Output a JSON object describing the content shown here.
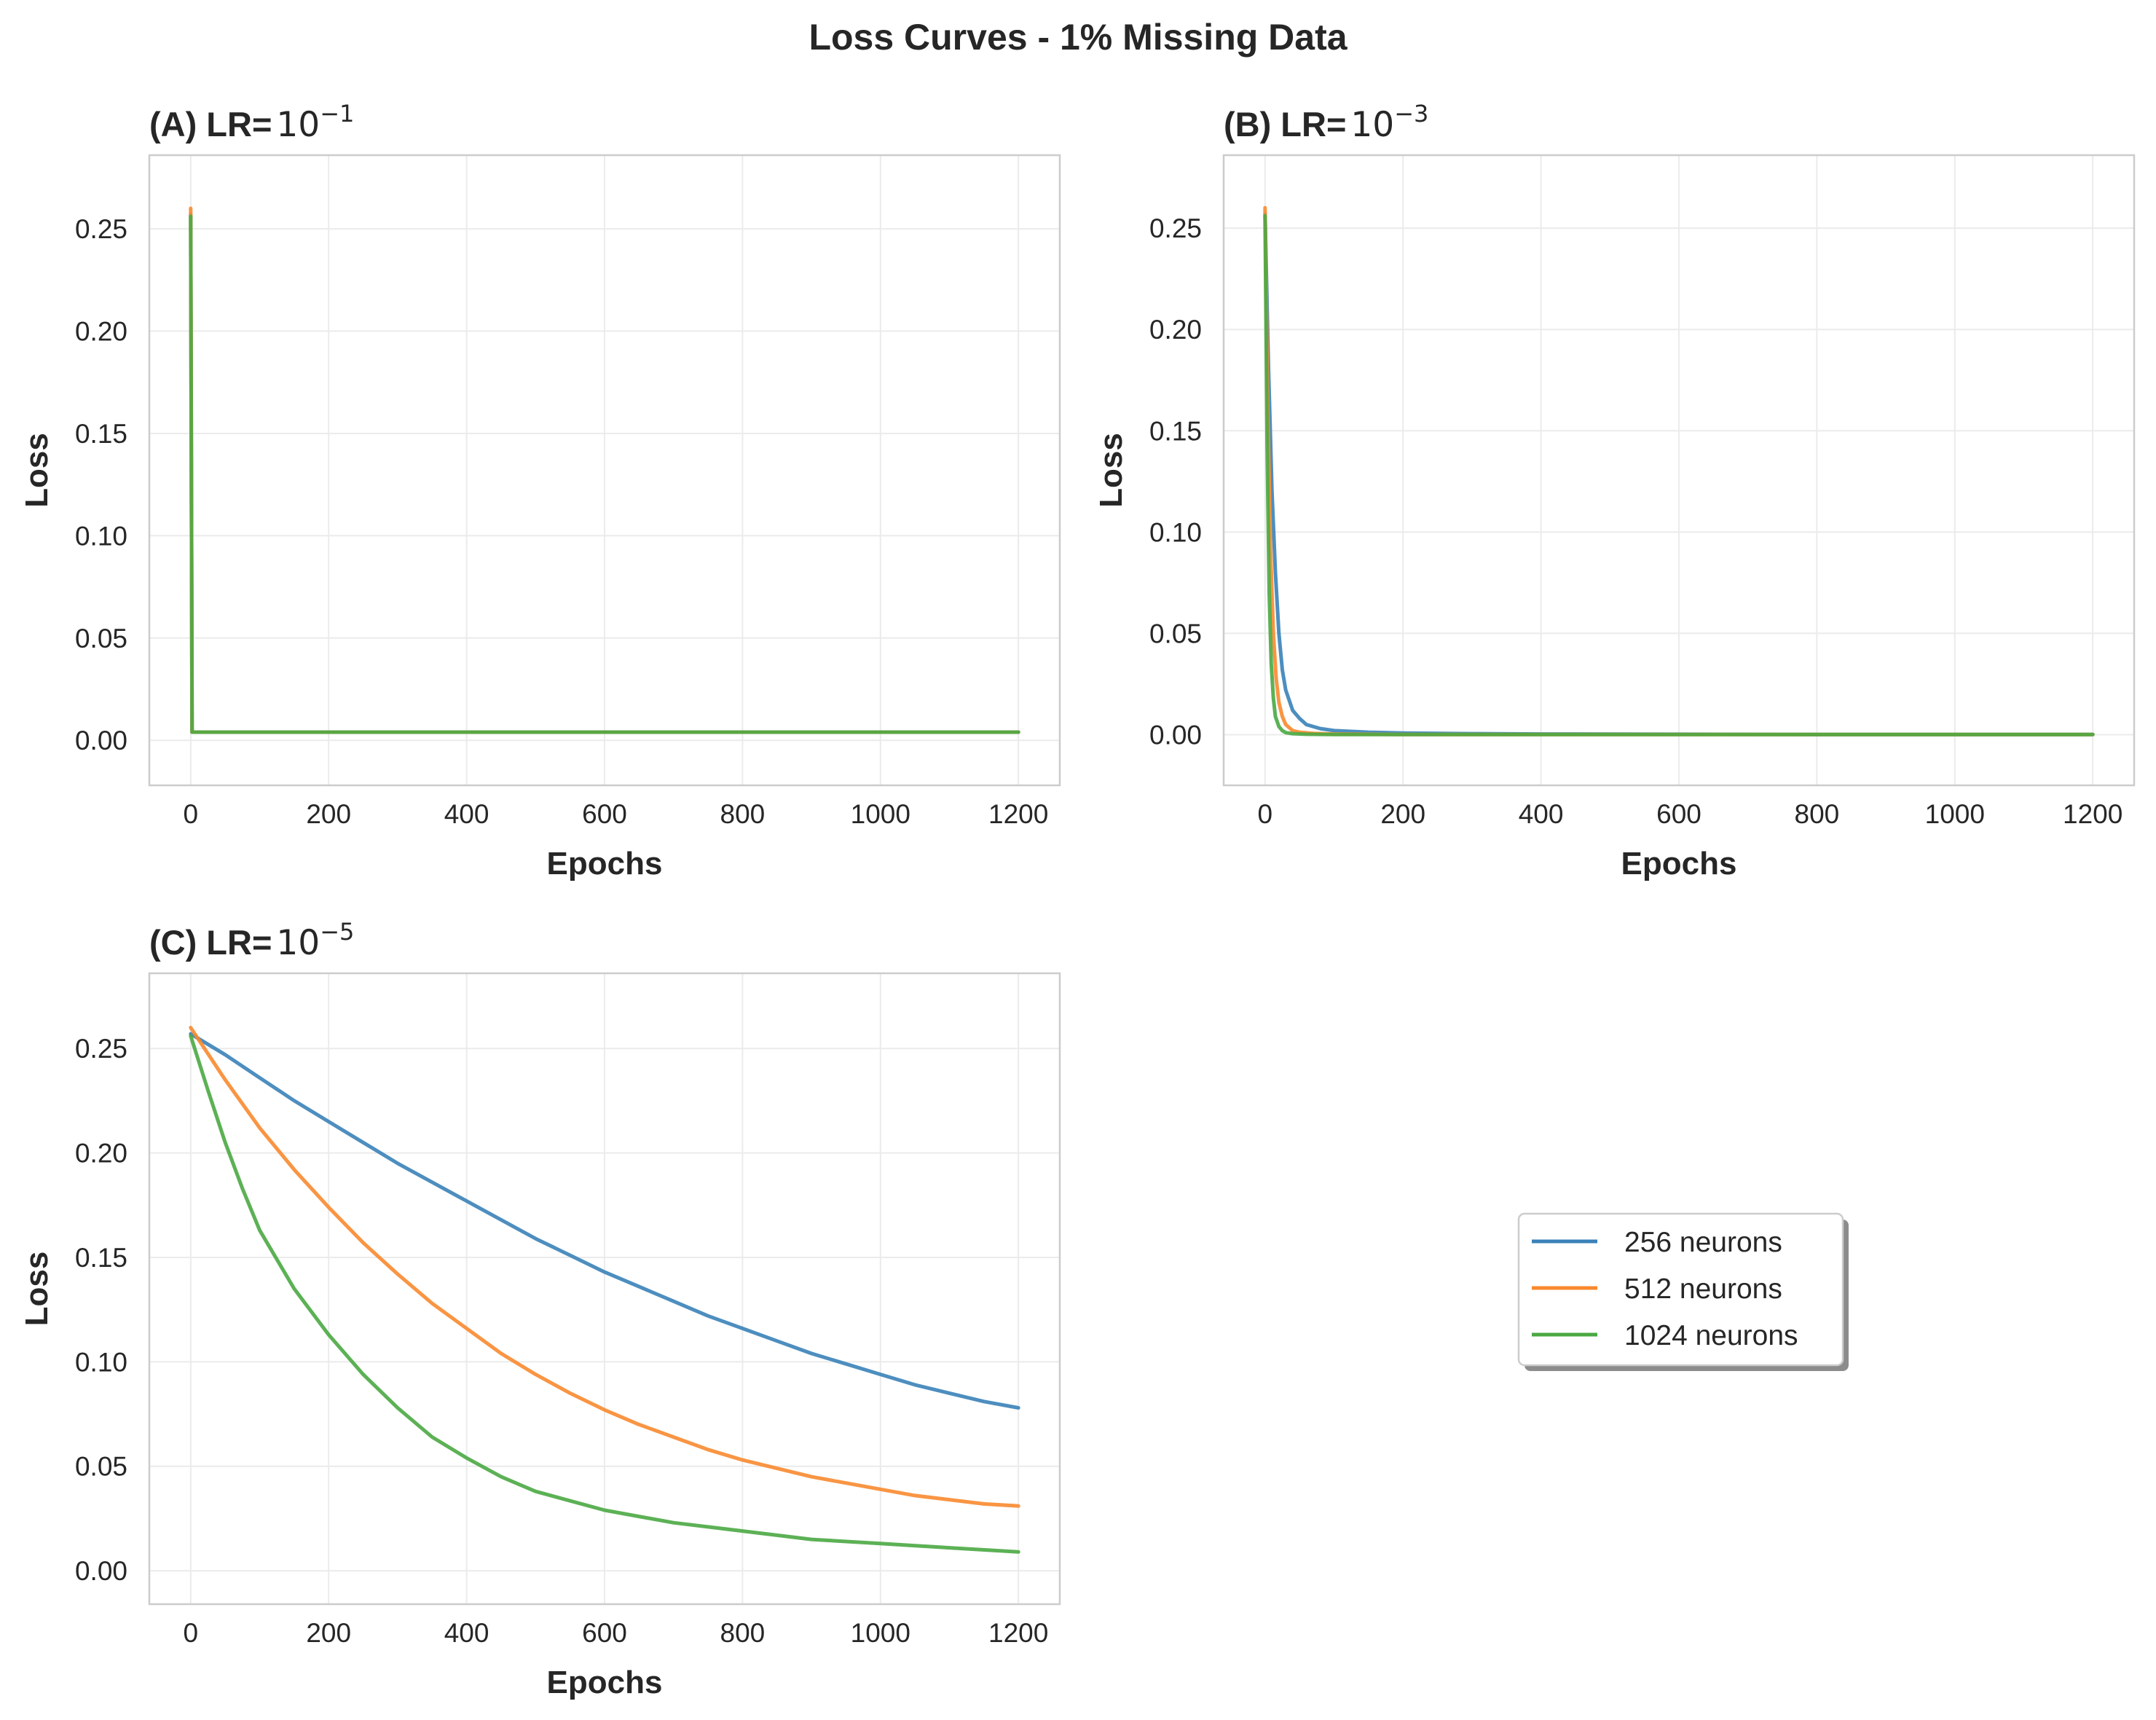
{
  "figure": {
    "suptitle": "Loss Curves - 1% Missing Data"
  },
  "chart_data": [
    {
      "type": "line",
      "panel": "A",
      "title": "(A) LR=",
      "title_math": {
        "base": "10",
        "exp": "−1"
      },
      "xlabel": "Epochs",
      "ylabel": "Loss",
      "xlim": [
        -60,
        1260
      ],
      "ylim": [
        -0.022,
        0.286
      ],
      "xticks": [
        0,
        200,
        400,
        600,
        800,
        1000,
        1200
      ],
      "yticks": [
        0.0,
        0.05,
        0.1,
        0.15,
        0.2,
        0.25
      ],
      "ytick_labels": [
        "0.00",
        "0.05",
        "0.10",
        "0.15",
        "0.20",
        "0.25"
      ],
      "grid": true,
      "series": [
        {
          "name": "256 neurons",
          "color": "#3a82b8",
          "x": [
            0,
            2,
            4,
            1200
          ],
          "y": [
            0.257,
            0.004,
            0.004,
            0.004
          ]
        },
        {
          "name": "512 neurons",
          "color": "#f8892f",
          "x": [
            0,
            2,
            4,
            1200
          ],
          "y": [
            0.26,
            0.004,
            0.004,
            0.004
          ]
        },
        {
          "name": "1024 neurons",
          "color": "#4aa842",
          "x": [
            0,
            2,
            4,
            1200
          ],
          "y": [
            0.256,
            0.004,
            0.004,
            0.004
          ]
        }
      ]
    },
    {
      "type": "line",
      "panel": "B",
      "title": "(B) LR=",
      "title_math": {
        "base": "10",
        "exp": "−3"
      },
      "xlabel": "Epochs",
      "ylabel": "Loss",
      "xlim": [
        -60,
        1260
      ],
      "ylim": [
        -0.025,
        0.286
      ],
      "xticks": [
        0,
        200,
        400,
        600,
        800,
        1000,
        1200
      ],
      "yticks": [
        0.0,
        0.05,
        0.1,
        0.15,
        0.2,
        0.25
      ],
      "ytick_labels": [
        "0.00",
        "0.05",
        "0.10",
        "0.15",
        "0.20",
        "0.25"
      ],
      "grid": true,
      "series": [
        {
          "name": "256 neurons",
          "color": "#3a82b8",
          "x": [
            0,
            5,
            10,
            15,
            20,
            25,
            30,
            40,
            50,
            60,
            80,
            100,
            150,
            200,
            300,
            400,
            600,
            800,
            1000,
            1200
          ],
          "y": [
            0.257,
            0.18,
            0.12,
            0.08,
            0.05,
            0.032,
            0.022,
            0.012,
            0.008,
            0.005,
            0.003,
            0.002,
            0.0012,
            0.0008,
            0.0005,
            0.0003,
            0.0002,
            0.0001,
            0.0001,
            0.0001
          ]
        },
        {
          "name": "512 neurons",
          "color": "#f8892f",
          "x": [
            0,
            4,
            8,
            12,
            16,
            20,
            25,
            30,
            40,
            50,
            70,
            100,
            150,
            200,
            400,
            1200
          ],
          "y": [
            0.26,
            0.16,
            0.09,
            0.05,
            0.028,
            0.016,
            0.009,
            0.005,
            0.002,
            0.0012,
            0.0006,
            0.0003,
            0.0002,
            0.0001,
            0.0001,
            0.0001
          ]
        },
        {
          "name": "1024 neurons",
          "color": "#4aa842",
          "x": [
            0,
            3,
            6,
            9,
            12,
            15,
            20,
            25,
            30,
            40,
            60,
            100,
            200,
            1200
          ],
          "y": [
            0.256,
            0.14,
            0.07,
            0.035,
            0.018,
            0.009,
            0.004,
            0.002,
            0.001,
            0.0005,
            0.0002,
            0.0001,
            0.0001,
            0.0001
          ]
        }
      ]
    },
    {
      "type": "line",
      "panel": "C",
      "title": "(C) LR=",
      "title_math": {
        "base": "10",
        "exp": "−5"
      },
      "xlabel": "Epochs",
      "ylabel": "Loss",
      "xlim": [
        -60,
        1260
      ],
      "ylim": [
        -0.016,
        0.286
      ],
      "xticks": [
        0,
        200,
        400,
        600,
        800,
        1000,
        1200
      ],
      "yticks": [
        0.0,
        0.05,
        0.1,
        0.15,
        0.2,
        0.25
      ],
      "ytick_labels": [
        "0.00",
        "0.05",
        "0.10",
        "0.15",
        "0.20",
        "0.25"
      ],
      "grid": true,
      "series": [
        {
          "name": "256 neurons",
          "color": "#3a82b8",
          "x": [
            0,
            50,
            100,
            150,
            200,
            250,
            300,
            350,
            400,
            450,
            500,
            550,
            600,
            650,
            700,
            750,
            800,
            850,
            900,
            950,
            1000,
            1050,
            1100,
            1150,
            1200
          ],
          "y": [
            0.257,
            0.247,
            0.236,
            0.225,
            0.215,
            0.205,
            0.195,
            0.186,
            0.177,
            0.168,
            0.159,
            0.151,
            0.143,
            0.136,
            0.129,
            0.122,
            0.116,
            0.11,
            0.104,
            0.099,
            0.094,
            0.089,
            0.085,
            0.081,
            0.078
          ]
        },
        {
          "name": "512 neurons",
          "color": "#f8892f",
          "x": [
            0,
            50,
            100,
            150,
            200,
            250,
            300,
            350,
            400,
            450,
            500,
            550,
            600,
            650,
            700,
            750,
            800,
            850,
            900,
            950,
            1000,
            1050,
            1100,
            1150,
            1200
          ],
          "y": [
            0.26,
            0.235,
            0.212,
            0.192,
            0.174,
            0.157,
            0.142,
            0.128,
            0.116,
            0.104,
            0.094,
            0.085,
            0.077,
            0.07,
            0.064,
            0.058,
            0.053,
            0.049,
            0.045,
            0.042,
            0.039,
            0.036,
            0.034,
            0.032,
            0.031
          ]
        },
        {
          "name": "1024 neurons",
          "color": "#4aa842",
          "x": [
            0,
            25,
            50,
            75,
            100,
            150,
            200,
            250,
            300,
            350,
            400,
            450,
            500,
            600,
            700,
            800,
            900,
            1000,
            1100,
            1200
          ],
          "y": [
            0.256,
            0.23,
            0.205,
            0.183,
            0.163,
            0.135,
            0.113,
            0.094,
            0.078,
            0.064,
            0.054,
            0.045,
            0.038,
            0.029,
            0.023,
            0.019,
            0.015,
            0.013,
            0.011,
            0.009
          ]
        }
      ]
    }
  ],
  "legend": {
    "placement": "bottom-right",
    "entries": [
      {
        "label": "256 neurons",
        "color": "#3a82b8"
      },
      {
        "label": "512 neurons",
        "color": "#f8892f"
      },
      {
        "label": "1024 neurons",
        "color": "#4aa842"
      }
    ]
  }
}
